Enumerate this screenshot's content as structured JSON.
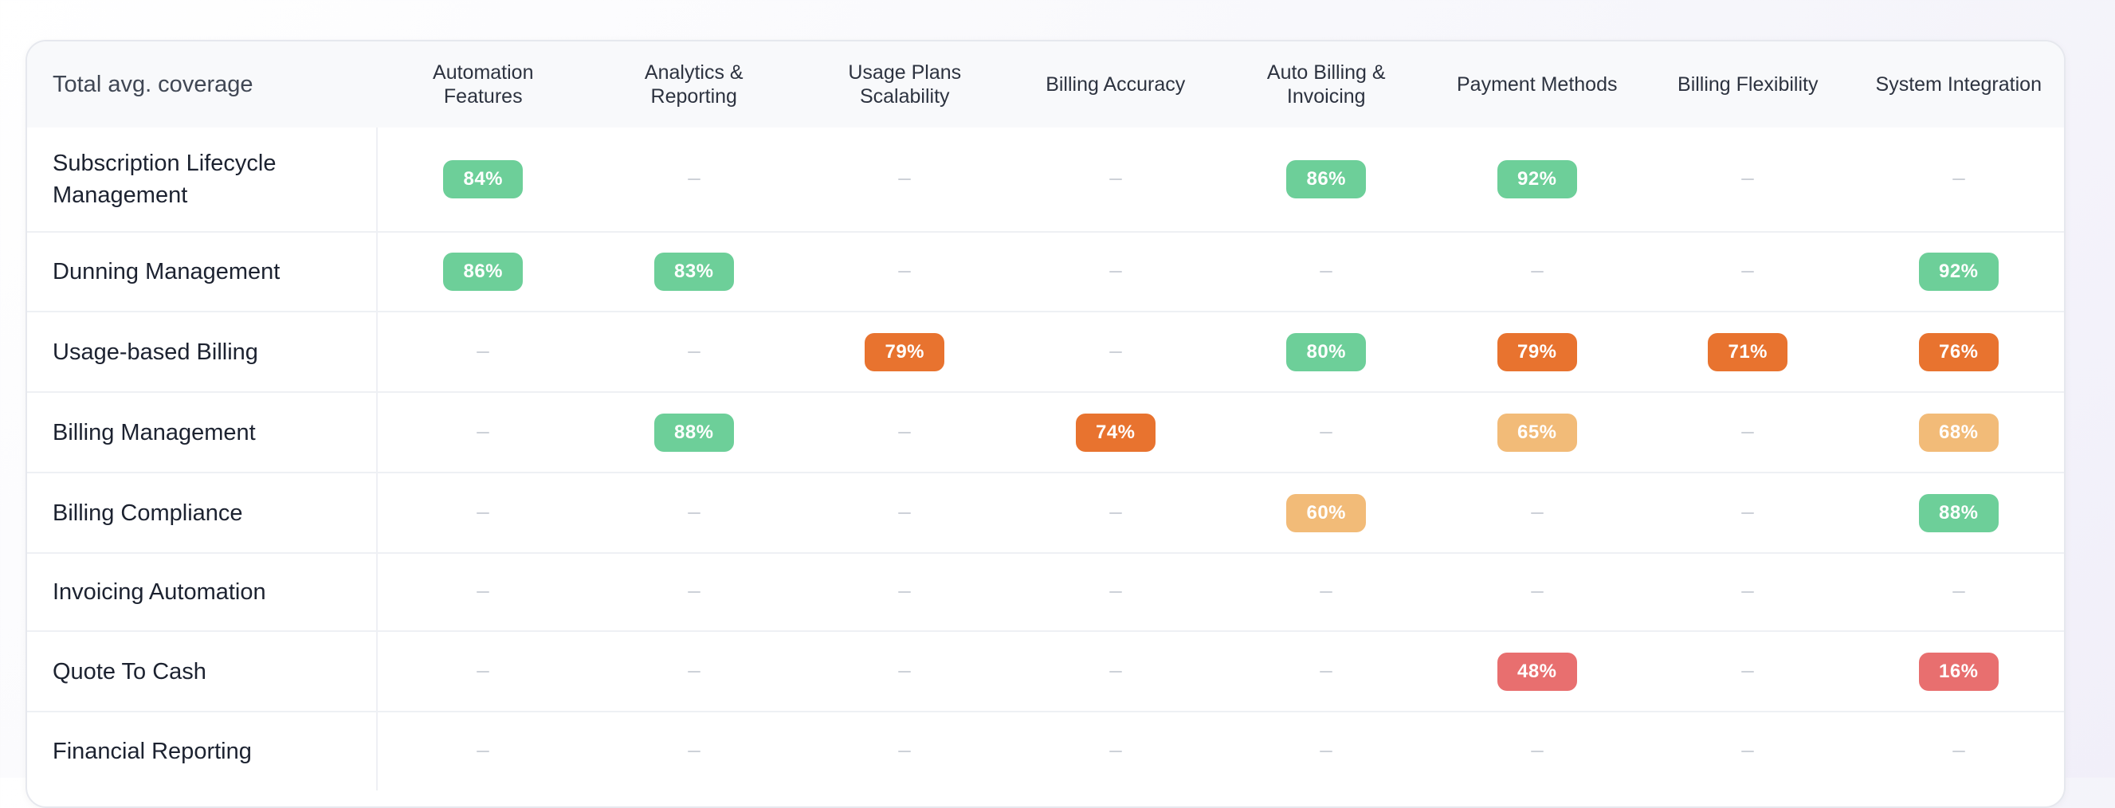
{
  "table": {
    "corner_label": "Total avg. coverage",
    "columns": [
      "Automation Features",
      "Analytics & Reporting",
      "Usage Plans Scalability",
      "Billing Accuracy",
      "Auto Billing & Invoicing",
      "Payment Methods",
      "Billing Flexibility",
      "System Integration"
    ],
    "empty_symbol": "–",
    "rows": [
      {
        "label": "Subscription Lifecycle Management",
        "cells": [
          {
            "value": "84%",
            "level": "green"
          },
          null,
          null,
          null,
          {
            "value": "86%",
            "level": "green"
          },
          {
            "value": "92%",
            "level": "green"
          },
          null,
          null
        ]
      },
      {
        "label": "Dunning Management",
        "cells": [
          {
            "value": "86%",
            "level": "green"
          },
          {
            "value": "83%",
            "level": "green"
          },
          null,
          null,
          null,
          null,
          null,
          {
            "value": "92%",
            "level": "green"
          }
        ]
      },
      {
        "label": "Usage-based Billing",
        "cells": [
          null,
          null,
          {
            "value": "79%",
            "level": "orange"
          },
          null,
          {
            "value": "80%",
            "level": "green"
          },
          {
            "value": "79%",
            "level": "orange"
          },
          {
            "value": "71%",
            "level": "orange"
          },
          {
            "value": "76%",
            "level": "orange"
          }
        ]
      },
      {
        "label": "Billing Management",
        "cells": [
          null,
          {
            "value": "88%",
            "level": "green"
          },
          null,
          {
            "value": "74%",
            "level": "orange"
          },
          null,
          {
            "value": "65%",
            "level": "light-orange"
          },
          null,
          {
            "value": "68%",
            "level": "light-orange"
          }
        ]
      },
      {
        "label": "Billing Compliance",
        "cells": [
          null,
          null,
          null,
          null,
          {
            "value": "60%",
            "level": "light-orange"
          },
          null,
          null,
          {
            "value": "88%",
            "level": "green"
          }
        ]
      },
      {
        "label": "Invoicing Automation",
        "cells": [
          null,
          null,
          null,
          null,
          null,
          null,
          null,
          null
        ]
      },
      {
        "label": "Quote To Cash",
        "cells": [
          null,
          null,
          null,
          null,
          null,
          {
            "value": "48%",
            "level": "red"
          },
          null,
          {
            "value": "16%",
            "level": "red"
          }
        ]
      },
      {
        "label": "Financial Reporting",
        "cells": [
          null,
          null,
          null,
          null,
          null,
          null,
          null,
          null
        ]
      }
    ]
  },
  "colors": {
    "green": "#6dcf99",
    "orange": "#e8732f",
    "light-orange": "#f2bb78",
    "red": "#e86f6f"
  }
}
